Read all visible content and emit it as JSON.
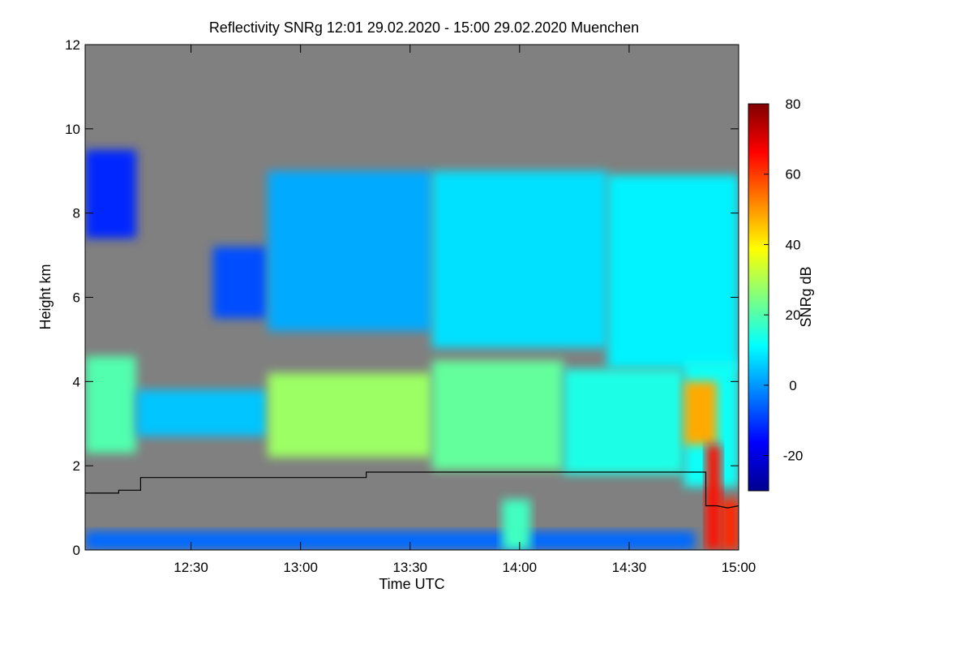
{
  "chart_data": {
    "type": "heatmap",
    "title": "Reflectivity SNRg   12:01 29.02.2020 - 15:00 29.02.2020 Muenchen",
    "xlabel": "Time UTC",
    "ylabel": "Height km",
    "colorbar_label": "SNRg dB",
    "xlim": [
      12.0167,
      15.0
    ],
    "ylim": [
      0,
      12
    ],
    "clim": [
      -30,
      80
    ],
    "x_ticks": [
      {
        "value": 12.5,
        "label": "12:30"
      },
      {
        "value": 13.0,
        "label": "13:00"
      },
      {
        "value": 13.5,
        "label": "13:30"
      },
      {
        "value": 14.0,
        "label": "14:00"
      },
      {
        "value": 14.5,
        "label": "14:30"
      },
      {
        "value": 15.0,
        "label": "15:00"
      }
    ],
    "y_ticks": [
      {
        "value": 0,
        "label": "0"
      },
      {
        "value": 2,
        "label": "2"
      },
      {
        "value": 4,
        "label": "4"
      },
      {
        "value": 6,
        "label": "6"
      },
      {
        "value": 8,
        "label": "8"
      },
      {
        "value": 10,
        "label": "10"
      },
      {
        "value": 12,
        "label": "12"
      }
    ],
    "colorbar_ticks": [
      {
        "value": -20,
        "label": "-20"
      },
      {
        "value": 0,
        "label": "0"
      },
      {
        "value": 20,
        "label": "20"
      },
      {
        "value": 40,
        "label": "40"
      },
      {
        "value": 60,
        "label": "60"
      },
      {
        "value": 80,
        "label": "80"
      }
    ],
    "colormap": [
      "#00008f",
      "#0000ff",
      "#0080ff",
      "#00ffff",
      "#80ff80",
      "#ffff00",
      "#ff8000",
      "#ff0000",
      "#800000"
    ],
    "background_color": "#808080",
    "regions": [
      {
        "t0": 12.0167,
        "t1": 12.25,
        "h0": 7.4,
        "h1": 9.5,
        "snr": -12
      },
      {
        "t0": 12.0167,
        "t1": 12.25,
        "h0": 2.3,
        "h1": 4.6,
        "snr": 20
      },
      {
        "t0": 12.25,
        "t1": 12.85,
        "h0": 2.7,
        "h1": 3.8,
        "snr": 5
      },
      {
        "t0": 12.6,
        "t1": 12.85,
        "h0": 5.5,
        "h1": 7.2,
        "snr": -8
      },
      {
        "t0": 12.85,
        "t1": 13.6,
        "h0": 5.2,
        "h1": 9.0,
        "snr": 2
      },
      {
        "t0": 13.6,
        "t1": 14.4,
        "h0": 4.8,
        "h1": 9.0,
        "snr": 8
      },
      {
        "t0": 14.4,
        "t1": 15.0,
        "h0": 4.3,
        "h1": 8.9,
        "snr": 10
      },
      {
        "t0": 12.85,
        "t1": 13.6,
        "h0": 2.2,
        "h1": 4.2,
        "snr": 28
      },
      {
        "t0": 13.6,
        "t1": 14.2,
        "h0": 1.9,
        "h1": 4.5,
        "snr": 22
      },
      {
        "t0": 14.2,
        "t1": 14.75,
        "h0": 1.8,
        "h1": 4.3,
        "snr": 14
      },
      {
        "t0": 14.75,
        "t1": 15.0,
        "h0": 1.5,
        "h1": 4.5,
        "snr": 12
      },
      {
        "t0": 14.75,
        "t1": 14.9,
        "h0": 2.5,
        "h1": 4.0,
        "snr": 48
      },
      {
        "t0": 14.85,
        "t1": 14.92,
        "h0": 0.0,
        "h1": 2.5,
        "snr": 65
      },
      {
        "t0": 14.92,
        "t1": 15.0,
        "h0": 0.0,
        "h1": 1.2,
        "snr": 62
      },
      {
        "t0": 12.0167,
        "t1": 14.8,
        "h0": 0.0,
        "h1": 0.45,
        "snr": -5
      },
      {
        "t0": 13.92,
        "t1": 14.05,
        "h0": 0.0,
        "h1": 1.2,
        "snr": 18
      }
    ],
    "line": {
      "color": "#000000",
      "points": [
        [
          12.0167,
          1.35
        ],
        [
          12.17,
          1.35
        ],
        [
          12.17,
          1.42
        ],
        [
          12.27,
          1.42
        ],
        [
          12.27,
          1.72
        ],
        [
          13.3,
          1.72
        ],
        [
          13.3,
          1.85
        ],
        [
          14.85,
          1.85
        ],
        [
          14.85,
          1.05
        ],
        [
          14.9,
          1.05
        ],
        [
          14.95,
          1.0
        ],
        [
          15.0,
          1.05
        ]
      ]
    }
  }
}
